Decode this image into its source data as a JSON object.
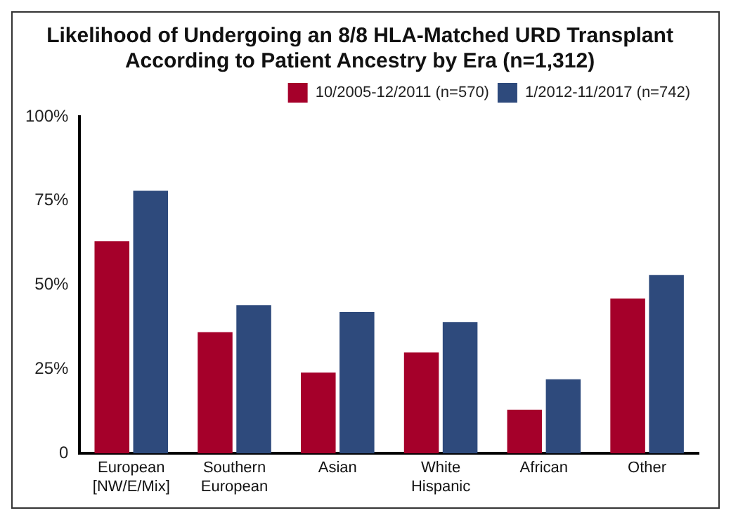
{
  "chart_data": {
    "type": "bar",
    "title": "Likelihood of Undergoing an 8/8 HLA-Matched URD Transplant According to Patient Ancestry by Era (n=1,312)",
    "categories": [
      "European [NW/E/Mix]",
      "Southern European",
      "Asian",
      "White Hispanic",
      "African",
      "Other"
    ],
    "series": [
      {
        "name": "10/2005-12/2011 (n=570)",
        "color": "#a5002a",
        "values": [
          63,
          36,
          24,
          30,
          13,
          46
        ]
      },
      {
        "name": "1/2012-11/2017 (n=742)",
        "color": "#2e4a7c",
        "values": [
          78,
          44,
          42,
          39,
          22,
          53
        ]
      }
    ],
    "ylim": [
      0,
      100
    ],
    "yticks": [
      {
        "value": 0,
        "label": "0"
      },
      {
        "value": 25,
        "label": "25%"
      },
      {
        "value": 50,
        "label": "50%"
      },
      {
        "value": 75,
        "label": "75%"
      },
      {
        "value": 100,
        "label": "100%"
      }
    ],
    "grid": false,
    "legend": "top right"
  }
}
